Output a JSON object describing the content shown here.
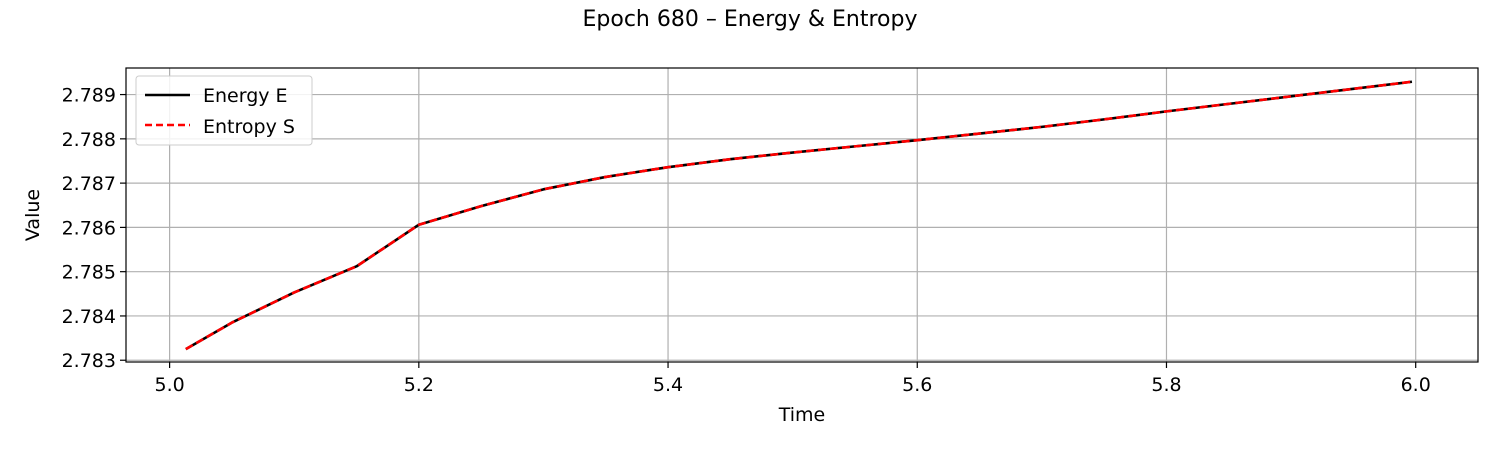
{
  "chart_data": {
    "type": "line",
    "title": "Epoch 680 – Energy & Entropy",
    "xlabel": "Time",
    "ylabel": "Value",
    "xlim": [
      4.965,
      6.05
    ],
    "ylim": [
      2.78296,
      2.7896
    ],
    "x_ticks": [
      5.0,
      5.2,
      5.4,
      5.6,
      5.8,
      6.0
    ],
    "x_tick_labels": [
      "5.0",
      "5.2",
      "5.4",
      "5.6",
      "5.8",
      "6.0"
    ],
    "y_ticks": [
      2.783,
      2.784,
      2.785,
      2.786,
      2.787,
      2.788,
      2.789
    ],
    "y_tick_labels": [
      "2.783",
      "2.784",
      "2.785",
      "2.786",
      "2.787",
      "2.788",
      "2.789"
    ],
    "grid": true,
    "legend_position": "top-left",
    "x": [
      5.013,
      5.05,
      5.1,
      5.15,
      5.2,
      5.25,
      5.3,
      5.35,
      5.4,
      5.45,
      5.5,
      5.55,
      5.6,
      5.65,
      5.7,
      5.75,
      5.8,
      5.85,
      5.9,
      5.95,
      5.997
    ],
    "series": [
      {
        "name": "Energy E",
        "color": "#000000",
        "linestyle": "solid",
        "values": [
          2.78325,
          2.78385,
          2.78453,
          2.78512,
          2.78606,
          2.78648,
          2.78686,
          2.78714,
          2.78736,
          2.78754,
          2.78769,
          2.78783,
          2.78797,
          2.78812,
          2.78827,
          2.78844,
          2.78862,
          2.78879,
          2.78896,
          2.78913,
          2.78929
        ]
      },
      {
        "name": "Entropy S",
        "color": "#ff0000",
        "linestyle": "dashed",
        "values": [
          2.78325,
          2.78385,
          2.78453,
          2.78512,
          2.78606,
          2.78648,
          2.78686,
          2.78714,
          2.78736,
          2.78754,
          2.78769,
          2.78783,
          2.78797,
          2.78812,
          2.78827,
          2.78844,
          2.78862,
          2.78879,
          2.78896,
          2.78913,
          2.78929
        ]
      }
    ]
  }
}
